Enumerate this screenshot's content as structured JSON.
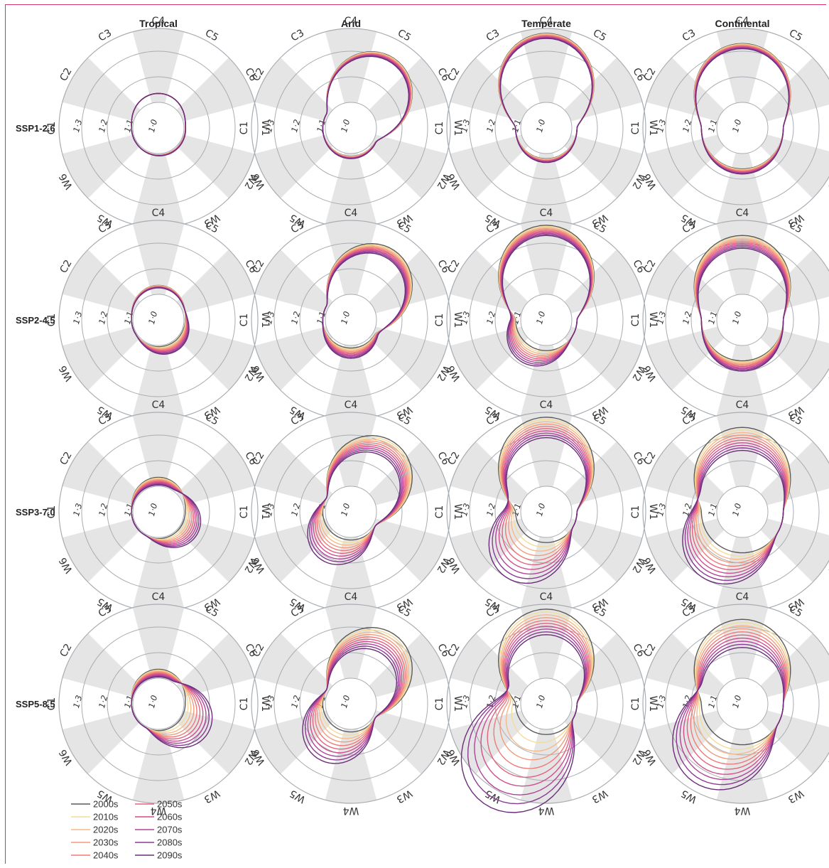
{
  "colors": {
    "decades": [
      "#5a5a5a",
      "#f3dc9a",
      "#f6b98a",
      "#f29a7f",
      "#ee7a79",
      "#e5627f",
      "#cf4f8e",
      "#b24498",
      "#8a3a93",
      "#6b2e78"
    ],
    "sector_shade": "#e5e5e5",
    "grid": "#a8adb3",
    "border": "#d6336c"
  },
  "chart_data": {
    "type": "polar-line",
    "columns": [
      "Tropical",
      "Arid",
      "Temperate",
      "Continental"
    ],
    "rows": [
      "SSP1-2.6",
      "SSP2-4.5",
      "SSP3-7.0",
      "SSP5-8.5"
    ],
    "directions": [
      "C4",
      "C5",
      "C6",
      "W1",
      "W2",
      "W3",
      "W4",
      "W5",
      "W6",
      "C1",
      "C2",
      "C3"
    ],
    "radial_ticks": [
      "1·0",
      "1·1",
      "1·2",
      "1·3"
    ],
    "radial_range": [
      1.0,
      1.35
    ],
    "legend": {
      "series": [
        "2000s",
        "2010s",
        "2020s",
        "2030s",
        "2040s",
        "2050s",
        "2060s",
        "2070s",
        "2080s",
        "2090s"
      ],
      "layout": "two columns, bottom-left"
    },
    "panels": [
      [
        {
          "scenario": "SSP1-2.6",
          "climate": "Tropical",
          "base_radius": 1.055,
          "lobe_dir": "C4",
          "lobe_start": 0.03,
          "lobe_end": 0.03,
          "warm_dir": "W3",
          "warm_start": 0.0,
          "warm_end": 0.005
        },
        {
          "scenario": "SSP1-2.6",
          "climate": "Arid",
          "base_radius": 1.06,
          "lobe_dir": "C5",
          "lobe_start": 0.21,
          "lobe_end": 0.19,
          "warm_dir": "W4",
          "warm_start": 0.0,
          "warm_end": 0.01
        },
        {
          "scenario": "SSP1-2.6",
          "climate": "Temperate",
          "base_radius": 1.07,
          "lobe_dir": "C4",
          "lobe_start": 0.25,
          "lobe_end": 0.23,
          "warm_dir": "W4",
          "warm_start": 0.0,
          "warm_end": 0.015
        },
        {
          "scenario": "SSP1-2.6",
          "climate": "Continental",
          "base_radius": 1.11,
          "lobe_dir": "C4",
          "lobe_start": 0.17,
          "lobe_end": 0.15,
          "warm_dir": "W4",
          "warm_start": 0.0,
          "warm_end": 0.02
        }
      ],
      [
        {
          "scenario": "SSP2-4.5",
          "climate": "Tropical",
          "base_radius": 1.055,
          "lobe_dir": "C4",
          "lobe_start": 0.03,
          "lobe_end": 0.02,
          "warm_dir": "W3",
          "warm_start": 0.0,
          "warm_end": 0.035
        },
        {
          "scenario": "SSP2-4.5",
          "climate": "Arid",
          "base_radius": 1.06,
          "lobe_dir": "C5",
          "lobe_start": 0.21,
          "lobe_end": 0.17,
          "warm_dir": "W4",
          "warm_start": 0.0,
          "warm_end": 0.04
        },
        {
          "scenario": "SSP2-4.5",
          "climate": "Temperate",
          "base_radius": 1.07,
          "lobe_dir": "C4",
          "lobe_start": 0.25,
          "lobe_end": 0.21,
          "warm_dir": "W5",
          "warm_start": 0.0,
          "warm_end": 0.07
        },
        {
          "scenario": "SSP2-4.5",
          "climate": "Continental",
          "base_radius": 1.11,
          "lobe_dir": "C4",
          "lobe_start": 0.17,
          "lobe_end": 0.12,
          "warm_dir": "W4",
          "warm_start": 0.0,
          "warm_end": 0.04
        }
      ],
      [
        {
          "scenario": "SSP3-7.0",
          "climate": "Tropical",
          "base_radius": 1.055,
          "lobe_dir": "C4",
          "lobe_start": 0.03,
          "lobe_end": 0.0,
          "warm_dir": "W2",
          "warm_start": 0.0,
          "warm_end": 0.07
        },
        {
          "scenario": "SSP3-7.0",
          "climate": "Arid",
          "base_radius": 1.06,
          "lobe_dir": "C5",
          "lobe_start": 0.21,
          "lobe_end": 0.14,
          "warm_dir": "W5",
          "warm_start": 0.0,
          "warm_end": 0.11
        },
        {
          "scenario": "SSP3-7.0",
          "climate": "Temperate",
          "base_radius": 1.07,
          "lobe_dir": "C4",
          "lobe_start": 0.25,
          "lobe_end": 0.17,
          "warm_dir": "W5",
          "warm_start": 0.0,
          "warm_end": 0.18
        },
        {
          "scenario": "SSP3-7.0",
          "climate": "Continental",
          "base_radius": 1.11,
          "lobe_dir": "C4",
          "lobe_start": 0.17,
          "lobe_end": 0.08,
          "warm_dir": "W5",
          "warm_start": 0.0,
          "warm_end": 0.14
        }
      ],
      [
        {
          "scenario": "SSP5-8.5",
          "climate": "Tropical",
          "base_radius": 1.055,
          "lobe_dir": "C4",
          "lobe_start": 0.03,
          "lobe_end": 0.0,
          "warm_dir": "W2",
          "warm_start": 0.0,
          "warm_end": 0.12
        },
        {
          "scenario": "SSP5-8.5",
          "climate": "Arid",
          "base_radius": 1.06,
          "lobe_dir": "C5",
          "lobe_start": 0.21,
          "lobe_end": 0.12,
          "warm_dir": "W5",
          "warm_start": 0.0,
          "warm_end": 0.14
        },
        {
          "scenario": "SSP5-8.5",
          "climate": "Temperate",
          "base_radius": 1.07,
          "lobe_dir": "C4",
          "lobe_start": 0.25,
          "lobe_end": 0.15,
          "warm_dir": "W5",
          "warm_start": 0.0,
          "warm_end": 0.34
        },
        {
          "scenario": "SSP5-8.5",
          "climate": "Continental",
          "base_radius": 1.11,
          "lobe_dir": "C4",
          "lobe_start": 0.17,
          "lobe_end": 0.06,
          "warm_dir": "W5",
          "warm_start": 0.0,
          "warm_end": 0.2
        }
      ]
    ]
  }
}
